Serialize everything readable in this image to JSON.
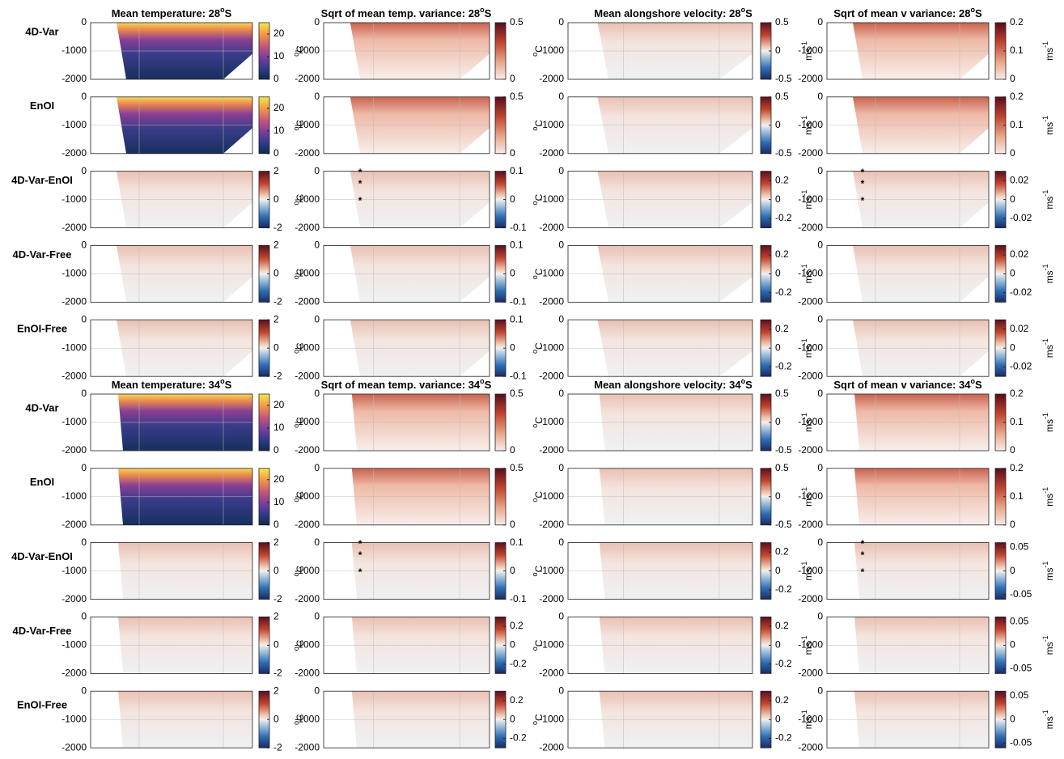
{
  "figure": {
    "depth_ticks": [
      0,
      -1000,
      -2000
    ],
    "depth_lim": [
      -2000,
      0
    ],
    "sections": [
      {
        "titles": [
          {
            "text": "Mean temperature: 28",
            "sup": "o",
            "end": "S"
          },
          {
            "text": "Sqrt of mean temp. variance: 28",
            "sup": "o",
            "end": "S"
          },
          {
            "text": "Mean alongshore velocity: 28",
            "sup": "o",
            "end": "S"
          },
          {
            "text": "Sqrt of mean v variance: 28",
            "sup": "o",
            "end": "S"
          }
        ],
        "rows": [
          {
            "label": "4D-Var",
            "colorbars": [
              {
                "cmap": "thermal",
                "lim": [
                  0,
                  25
                ],
                "ticks": [
                  20,
                  10,
                  0
                ]
              },
              {
                "cmap": "amp",
                "lim": [
                  0,
                  0.5
                ],
                "ticks": [
                  0.5,
                  0
                ]
              },
              {
                "cmap": "balance",
                "lim": [
                  -0.5,
                  0.5
                ],
                "ticks": [
                  0.5,
                  0,
                  -0.5
                ]
              },
              {
                "cmap": "amp",
                "lim": [
                  0,
                  0.2
                ],
                "ticks": [
                  0.2,
                  0.1,
                  0
                ]
              }
            ]
          },
          {
            "label": "EnOI",
            "colorbars": [
              {
                "cmap": "thermal",
                "lim": [
                  0,
                  25
                ],
                "ticks": [
                  20,
                  10,
                  0
                ]
              },
              {
                "cmap": "amp",
                "lim": [
                  0,
                  0.5
                ],
                "ticks": [
                  0.5,
                  0
                ]
              },
              {
                "cmap": "balance",
                "lim": [
                  -0.5,
                  0.5
                ],
                "ticks": [
                  0.5,
                  0,
                  -0.5
                ]
              },
              {
                "cmap": "amp",
                "lim": [
                  0,
                  0.2
                ],
                "ticks": [
                  0.2,
                  0.1,
                  0
                ]
              }
            ]
          },
          {
            "label": "4D-Var-EnOI",
            "stars": [
              "*",
              "*",
              "*"
            ],
            "colorbars": [
              {
                "cmap": "balance",
                "lim": [
                  -2,
                  2
                ],
                "ticks": [
                  2,
                  0,
                  -2
                ]
              },
              {
                "cmap": "balance",
                "lim": [
                  -0.1,
                  0.1
                ],
                "ticks": [
                  0.1,
                  0,
                  -0.1
                ]
              },
              {
                "cmap": "balance",
                "lim": [
                  -0.3,
                  0.3
                ],
                "ticks": [
                  0.2,
                  0,
                  -0.2
                ]
              },
              {
                "cmap": "balance",
                "lim": [
                  -0.03,
                  0.03
                ],
                "ticks": [
                  0.02,
                  0,
                  -0.02
                ]
              }
            ]
          },
          {
            "label": "4D-Var-Free",
            "colorbars": [
              {
                "cmap": "balance",
                "lim": [
                  -2,
                  2
                ],
                "ticks": [
                  2,
                  0,
                  -2
                ]
              },
              {
                "cmap": "balance",
                "lim": [
                  -0.1,
                  0.1
                ],
                "ticks": [
                  0.1,
                  0,
                  -0.1
                ]
              },
              {
                "cmap": "balance",
                "lim": [
                  -0.3,
                  0.3
                ],
                "ticks": [
                  0.2,
                  0,
                  -0.2
                ]
              },
              {
                "cmap": "balance",
                "lim": [
                  -0.03,
                  0.03
                ],
                "ticks": [
                  0.02,
                  0,
                  -0.02
                ]
              }
            ]
          },
          {
            "label": "EnOI-Free",
            "colorbars": [
              {
                "cmap": "balance",
                "lim": [
                  -2,
                  2
                ],
                "ticks": [
                  2,
                  0,
                  -2
                ]
              },
              {
                "cmap": "balance",
                "lim": [
                  -0.1,
                  0.1
                ],
                "ticks": [
                  0.1,
                  0,
                  -0.1
                ]
              },
              {
                "cmap": "balance",
                "lim": [
                  -0.3,
                  0.3
                ],
                "ticks": [
                  0.2,
                  0,
                  -0.2
                ]
              },
              {
                "cmap": "balance",
                "lim": [
                  -0.03,
                  0.03
                ],
                "ticks": [
                  0.02,
                  0,
                  -0.02
                ]
              }
            ]
          }
        ]
      },
      {
        "titles": [
          {
            "text": "Mean temperature: 34",
            "sup": "o",
            "end": "S"
          },
          {
            "text": "Sqrt of mean temp. variance: 34",
            "sup": "o",
            "end": "S"
          },
          {
            "text": "Mean alongshore velocity: 34",
            "sup": "o",
            "end": "S"
          },
          {
            "text": "Sqrt of mean v variance: 34",
            "sup": "o",
            "end": "S"
          }
        ],
        "rows": [
          {
            "label": "4D-Var",
            "colorbars": [
              {
                "cmap": "thermal",
                "lim": [
                  0,
                  25
                ],
                "ticks": [
                  20,
                  10,
                  0
                ]
              },
              {
                "cmap": "amp",
                "lim": [
                  0,
                  0.5
                ],
                "ticks": [
                  0.5,
                  0
                ]
              },
              {
                "cmap": "balance",
                "lim": [
                  -0.5,
                  0.5
                ],
                "ticks": [
                  0.5,
                  0,
                  -0.5
                ]
              },
              {
                "cmap": "amp",
                "lim": [
                  0,
                  0.2
                ],
                "ticks": [
                  0.2,
                  0.1,
                  0
                ]
              }
            ]
          },
          {
            "label": "EnOI",
            "colorbars": [
              {
                "cmap": "thermal",
                "lim": [
                  0,
                  25
                ],
                "ticks": [
                  20,
                  10,
                  0
                ]
              },
              {
                "cmap": "amp",
                "lim": [
                  0,
                  0.5
                ],
                "ticks": [
                  0.5,
                  0
                ]
              },
              {
                "cmap": "balance",
                "lim": [
                  -0.5,
                  0.5
                ],
                "ticks": [
                  0.5,
                  0,
                  -0.5
                ]
              },
              {
                "cmap": "amp",
                "lim": [
                  0,
                  0.2
                ],
                "ticks": [
                  0.2,
                  0.1,
                  0
                ]
              }
            ]
          },
          {
            "label": "4D-Var-EnOI",
            "stars": [
              "*",
              "*",
              "*"
            ],
            "colorbars": [
              {
                "cmap": "balance",
                "lim": [
                  -2,
                  2
                ],
                "ticks": [
                  2,
                  0,
                  -2
                ]
              },
              {
                "cmap": "balance",
                "lim": [
                  -0.1,
                  0.1
                ],
                "ticks": [
                  0.1,
                  0,
                  -0.1
                ]
              },
              {
                "cmap": "balance",
                "lim": [
                  -0.3,
                  0.3
                ],
                "ticks": [
                  0.2,
                  0,
                  -0.2
                ]
              },
              {
                "cmap": "balance",
                "lim": [
                  -0.06,
                  0.06
                ],
                "ticks": [
                  0.05,
                  0,
                  -0.05
                ]
              }
            ]
          },
          {
            "label": "4D-Var-Free",
            "colorbars": [
              {
                "cmap": "balance",
                "lim": [
                  -2,
                  2
                ],
                "ticks": [
                  2,
                  0,
                  -2
                ]
              },
              {
                "cmap": "balance",
                "lim": [
                  -0.3,
                  0.3
                ],
                "ticks": [
                  0.2,
                  0,
                  -0.2
                ]
              },
              {
                "cmap": "balance",
                "lim": [
                  -0.3,
                  0.3
                ],
                "ticks": [
                  0.2,
                  0,
                  -0.2
                ]
              },
              {
                "cmap": "balance",
                "lim": [
                  -0.06,
                  0.06
                ],
                "ticks": [
                  0.05,
                  0,
                  -0.05
                ]
              }
            ]
          },
          {
            "label": "EnOI-Free",
            "colorbars": [
              {
                "cmap": "balance",
                "lim": [
                  -2,
                  2
                ],
                "ticks": [
                  2,
                  0,
                  -2
                ]
              },
              {
                "cmap": "balance",
                "lim": [
                  -0.3,
                  0.3
                ],
                "ticks": [
                  0.2,
                  0,
                  -0.2
                ]
              },
              {
                "cmap": "balance",
                "lim": [
                  -0.3,
                  0.3
                ],
                "ticks": [
                  0.2,
                  0,
                  -0.2
                ]
              },
              {
                "cmap": "balance",
                "lim": [
                  -0.06,
                  0.06
                ],
                "ticks": [
                  0.05,
                  0,
                  -0.05
                ]
              }
            ]
          }
        ]
      }
    ],
    "units": [
      {
        "sup": "o",
        "text": "C"
      },
      {
        "sup": "o",
        "text": "C"
      },
      {
        "text": "ms",
        "sup": "-1"
      },
      {
        "text": "ms",
        "sup": "-1"
      }
    ]
  }
}
